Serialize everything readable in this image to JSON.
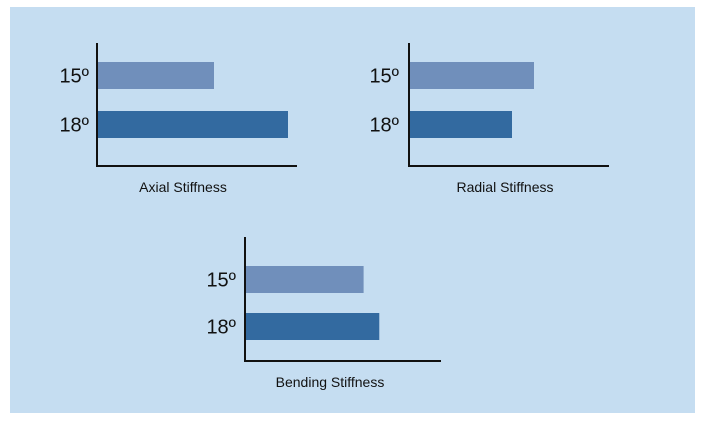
{
  "colors": {
    "background": "#c5ddf1",
    "series_15": "#708fbb",
    "series_18": "#336aa0",
    "axis": "#111111"
  },
  "chart_data": [
    {
      "type": "bar",
      "orientation": "horizontal",
      "categories": [
        "15º",
        "18º"
      ],
      "values": [
        0.58,
        0.95
      ],
      "xlabel": "Axial Stiffness",
      "ylabel": "",
      "title": "",
      "xlim": [
        0,
        1
      ],
      "grid": false
    },
    {
      "type": "bar",
      "orientation": "horizontal",
      "categories": [
        "15º",
        "18º"
      ],
      "values": [
        0.62,
        0.51
      ],
      "xlabel": "Radial Stiffness",
      "ylabel": "",
      "title": "",
      "xlim": [
        0,
        1
      ],
      "grid": false
    },
    {
      "type": "bar",
      "orientation": "horizontal",
      "categories": [
        "15º",
        "18º"
      ],
      "values": [
        0.6,
        0.68
      ],
      "xlabel": "Bending Stiffness",
      "ylabel": "",
      "title": "",
      "xlim": [
        0,
        1
      ],
      "grid": false
    }
  ]
}
